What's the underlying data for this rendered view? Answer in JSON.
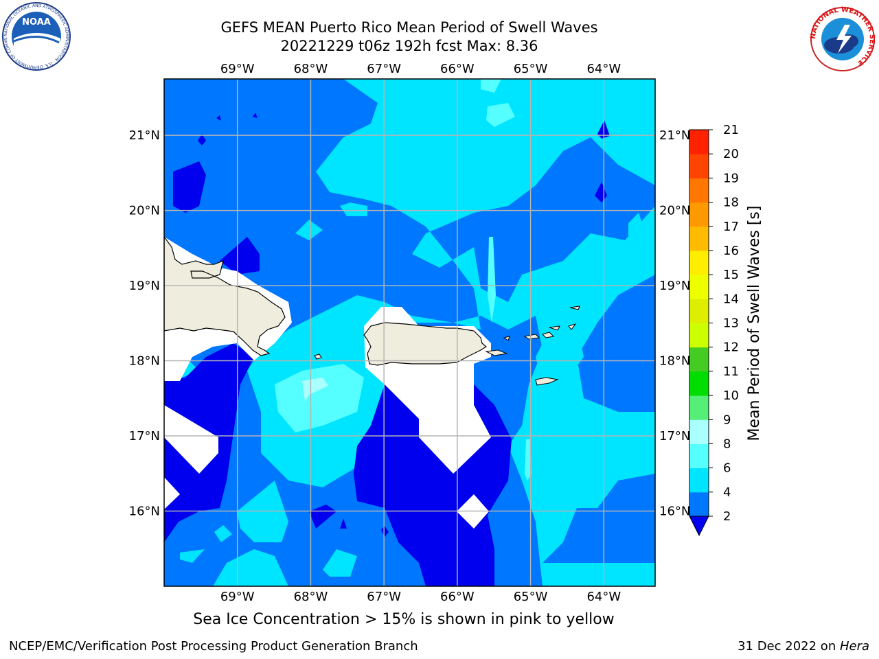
{
  "header": {
    "title_line1": "GEFS MEAN Puerto Rico Mean Period of Swell Waves",
    "title_line2": "20221229 t06z 192h fcst   Max: 8.36"
  },
  "logos": {
    "left": "NOAA",
    "left_ring_text": "NATIONAL OCEANIC AND ATMOSPHERIC ADMINISTRATION · U.S. DEPARTMENT OF COMMERCE",
    "right_ring_text": "NATIONAL WEATHER SERVICE"
  },
  "map": {
    "lon_labels": [
      "69°W",
      "68°W",
      "67°W",
      "66°W",
      "65°W",
      "64°W"
    ],
    "lat_labels": [
      "21°N",
      "20°N",
      "19°N",
      "18°N",
      "17°N",
      "16°N"
    ],
    "lon_values": [
      -69,
      -68,
      -67,
      -66,
      -65,
      -64
    ],
    "lat_values": [
      21,
      20,
      19,
      18,
      17,
      16
    ],
    "extent": {
      "lon": [
        -70.0,
        -63.3
      ],
      "lat": [
        15.0,
        21.75
      ]
    },
    "grid": true,
    "field_note": "Mean period of swell waves, filled contours"
  },
  "colorbar": {
    "label": "Mean Period of Swell Waves [s]",
    "ticks": [
      "2",
      "4",
      "6",
      "8",
      "9",
      "10",
      "11",
      "12",
      "13",
      "14",
      "15",
      "16",
      "17",
      "18",
      "19",
      "20",
      "21"
    ],
    "levels": [
      {
        "from": 2,
        "to": 4,
        "color": "#0077ff"
      },
      {
        "from": 4,
        "to": 6,
        "color": "#00e5ff"
      },
      {
        "from": 6,
        "to": 8,
        "color": "#55ffff"
      },
      {
        "from": 8,
        "to": 9,
        "color": "#aaffff"
      },
      {
        "from": 9,
        "to": 10,
        "color": "#55ee77"
      },
      {
        "from": 10,
        "to": 11,
        "color": "#00dd00"
      },
      {
        "from": 11,
        "to": 12,
        "color": "#44cc22"
      },
      {
        "from": 12,
        "to": 13,
        "color": "#ccff00"
      },
      {
        "from": 13,
        "to": 14,
        "color": "#ddee00"
      },
      {
        "from": 14,
        "to": 15,
        "color": "#eeff00"
      },
      {
        "from": 15,
        "to": 16,
        "color": "#ffee00"
      },
      {
        "from": 16,
        "to": 17,
        "color": "#ffbb00"
      },
      {
        "from": 17,
        "to": 18,
        "color": "#ff9900"
      },
      {
        "from": 18,
        "to": 19,
        "color": "#ff7700"
      },
      {
        "from": 19,
        "to": 20,
        "color": "#ff4400"
      },
      {
        "from": 20,
        "to": 21,
        "color": "#ff2200"
      }
    ],
    "under_color": "#0000ee",
    "top_color": "#ff0000"
  },
  "colors": {
    "deep_blue": "#0000ee",
    "blue": "#0077ff",
    "cyan": "#00e5ff",
    "light_cyan": "#55ffff",
    "pale_cyan": "#aaffff",
    "land": "#efedde",
    "grid": "#b4b4b4"
  },
  "subtitle": "Sea Ice Concentration > 15% is shown in pink to yellow",
  "footer": {
    "left": "NCEP/EMC/Verification Post Processing Product Generation Branch",
    "right_date": "31 Dec 2022 on ",
    "right_host": "Hera"
  }
}
